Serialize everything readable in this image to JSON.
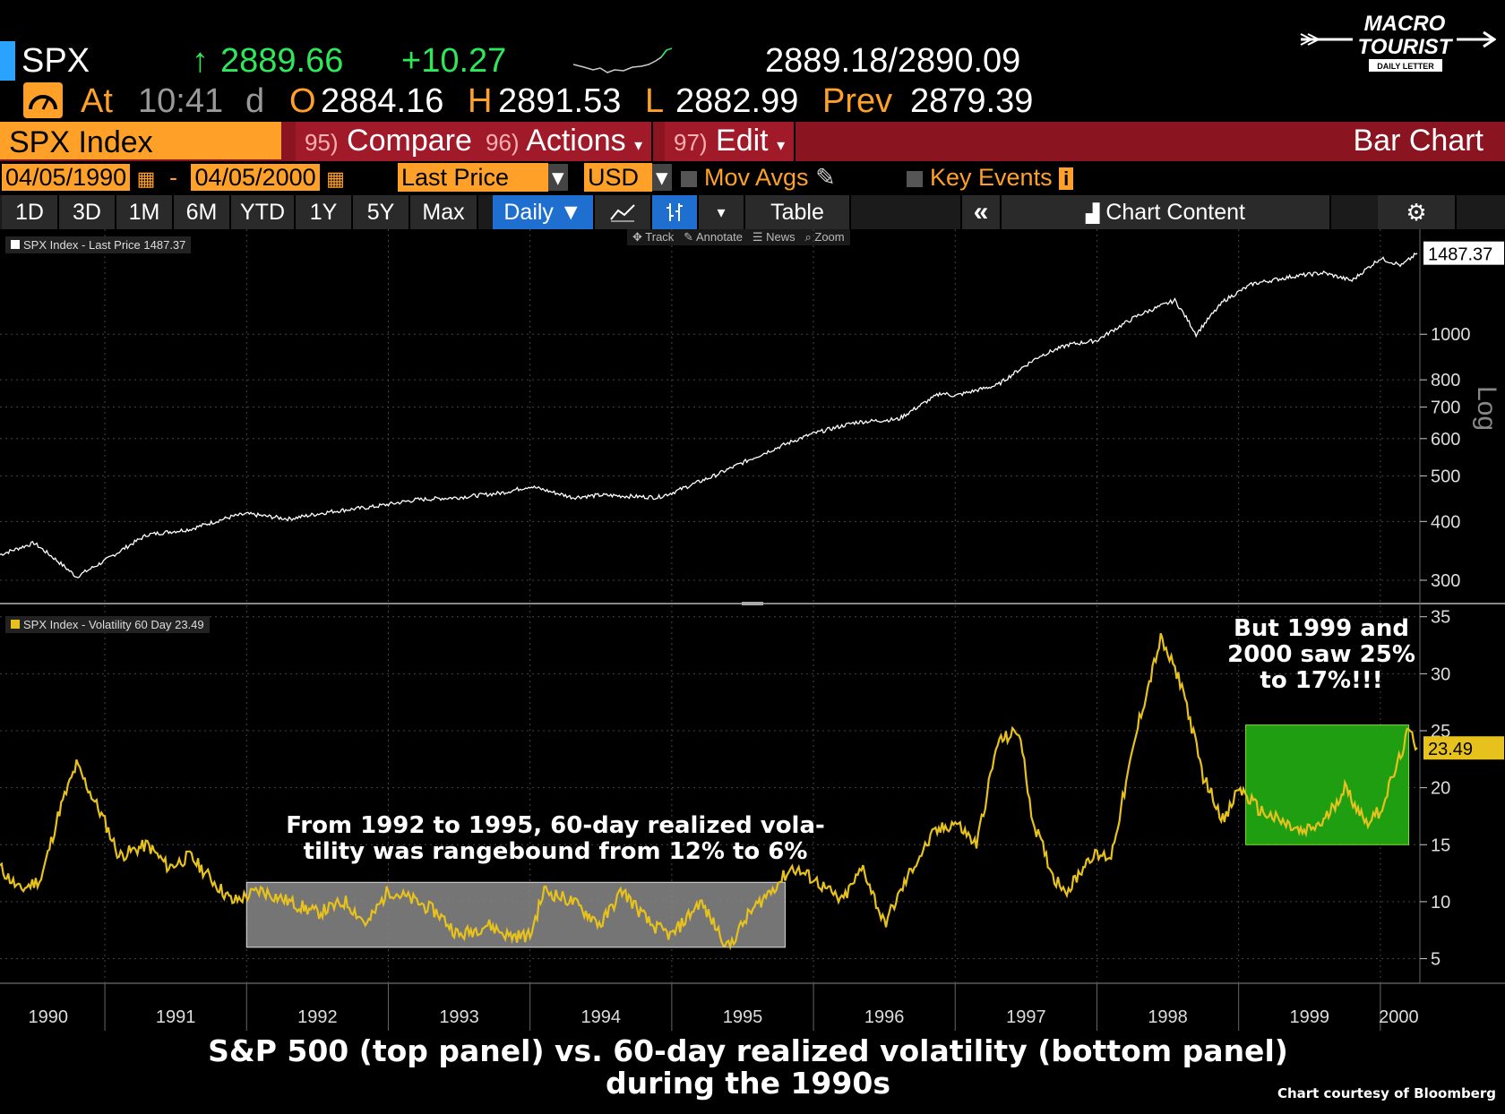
{
  "quote": {
    "ticker": "SPX",
    "arrow": "↑",
    "last": "2889.66",
    "change": "+10.27",
    "bid_ask": "2889.18/2890.09",
    "at_label": "At",
    "time": "10:41",
    "d_label": "d",
    "o_label": "O",
    "open": "2884.16",
    "h_label": "H",
    "high": "2891.53",
    "l_label": "L",
    "low": "2882.99",
    "prev_label": "Prev",
    "prev": "2879.39"
  },
  "logo": {
    "line1": "MACRO",
    "line2": "TOURIST",
    "line3": "DAILY LETTER"
  },
  "menu": {
    "security": "SPX Index",
    "compare_num": "95)",
    "compare": "Compare",
    "actions_num": "96)",
    "actions": "Actions",
    "edit_num": "97)",
    "edit": "Edit",
    "chart_type": "Bar Chart"
  },
  "controls": {
    "start_date": "04/05/1990",
    "dash": "-",
    "end_date": "04/05/2000",
    "field": "Last Price",
    "currency": "USD",
    "mov_avgs": "Mov Avgs",
    "key_events": "Key Events"
  },
  "tabs": [
    "1D",
    "3D",
    "1M",
    "6M",
    "YTD",
    "1Y",
    "5Y",
    "Max"
  ],
  "period": "Daily ▼",
  "table_label": "Table",
  "chart_content": "Chart Content",
  "tools": [
    "Track",
    "Annotate",
    "News",
    "Zoom"
  ],
  "colors": {
    "amber": "#ffa028",
    "price_line": "#ffffff",
    "vol_line": "#e8c21c",
    "green_box": "#1f9e12",
    "grey_box": "#8a8a8a"
  },
  "chart_data": [
    {
      "type": "line",
      "title": "SPX Index - Last Price 1487.37",
      "legend": "SPX Index - Last Price 1487.37",
      "last_value_label": "1487.37",
      "last_value": 1487.37,
      "scale": "log",
      "scale_label": "Log",
      "ylim": [
        270,
        1600
      ],
      "y_ticks": [
        300,
        400,
        500,
        600,
        700,
        800,
        1000
      ],
      "y_tick_labels": [
        "300",
        "400",
        "500",
        "600",
        "700",
        "800",
        "1000"
      ],
      "x": [
        1990.26,
        1990.5,
        1990.8,
        1991.0,
        1991.3,
        1991.6,
        1991.9,
        1992.0,
        1992.3,
        1992.6,
        1992.9,
        1993.2,
        1993.5,
        1993.8,
        1994.0,
        1994.3,
        1994.5,
        1994.9,
        1995.0,
        1995.3,
        1995.6,
        1995.9,
        1996.0,
        1996.3,
        1996.6,
        1996.9,
        1997.0,
        1997.3,
        1997.6,
        1997.8,
        1998.0,
        1998.3,
        1998.55,
        1998.7,
        1998.9,
        1999.1,
        1999.4,
        1999.6,
        1999.8,
        2000.0,
        2000.15,
        2000.26
      ],
      "values": [
        340,
        360,
        305,
        330,
        375,
        385,
        410,
        415,
        405,
        420,
        430,
        445,
        450,
        460,
        475,
        450,
        455,
        450,
        460,
        500,
        550,
        600,
        615,
        650,
        660,
        750,
        740,
        780,
        900,
        950,
        970,
        1100,
        1180,
        1000,
        1180,
        1280,
        1330,
        1350,
        1300,
        1450,
        1400,
        1487.37
      ]
    },
    {
      "type": "line",
      "title": "SPX Index - Volatility 60 Day 23.49",
      "legend": "SPX Index - Volatility 60 Day 23.49",
      "last_value_label": "23.49",
      "last_value": 23.49,
      "ylim": [
        3,
        36
      ],
      "y_ticks": [
        5,
        10,
        15,
        20,
        25,
        30,
        35
      ],
      "y_tick_labels": [
        "5",
        "10",
        "15",
        "20",
        "25",
        "30",
        "35"
      ],
      "x_categories": [
        "1990",
        "1991",
        "1992",
        "1993",
        "1994",
        "1995",
        "1996",
        "1997",
        "1998",
        "1999",
        "2000"
      ],
      "x": [
        1990.26,
        1990.4,
        1990.55,
        1990.68,
        1990.8,
        1991.0,
        1991.1,
        1991.3,
        1991.45,
        1991.6,
        1991.75,
        1991.9,
        1992.1,
        1992.3,
        1992.5,
        1992.7,
        1992.85,
        1993.0,
        1993.2,
        1993.35,
        1993.5,
        1993.7,
        1993.85,
        1994.0,
        1994.1,
        1994.3,
        1994.5,
        1994.65,
        1994.85,
        1995.0,
        1995.2,
        1995.4,
        1995.55,
        1995.7,
        1995.85,
        1996.0,
        1996.2,
        1996.35,
        1996.5,
        1996.7,
        1996.85,
        1997.0,
        1997.15,
        1997.3,
        1997.45,
        1997.55,
        1997.7,
        1997.8,
        1997.95,
        1998.1,
        1998.3,
        1998.45,
        1998.6,
        1998.75,
        1998.9,
        1999.0,
        1999.15,
        1999.3,
        1999.45,
        1999.6,
        1999.75,
        1999.9,
        2000.0,
        2000.12,
        2000.2,
        2000.26
      ],
      "values": [
        13,
        11,
        12,
        18,
        22,
        17,
        14,
        15,
        13,
        14,
        12,
        10,
        11,
        10,
        9,
        10,
        8,
        11,
        10,
        9,
        7,
        8,
        7,
        7,
        11,
        10,
        8,
        11,
        8,
        7,
        10,
        6,
        9,
        11,
        13,
        12,
        10,
        13,
        8,
        13,
        16,
        17,
        15,
        24,
        25,
        17,
        12,
        11,
        14,
        14,
        26,
        33,
        29,
        21,
        17,
        20,
        18,
        17,
        16,
        17,
        20,
        17,
        18,
        22,
        25,
        23.49
      ]
    }
  ],
  "annotations": {
    "range_text": "From 1992 to 1995, 60-day realized vola- tility was rangebound from 12% to 6%",
    "range_line1": "From 1992 to 1995, 60-day realized vola-",
    "range_line2": "tility was rangebound from 12% to 6%",
    "late_line1": "But 1999 and",
    "late_line2": "2000 saw 25%",
    "late_line3": "to 17%!!!",
    "grey_box": {
      "x_from": 1992.0,
      "x_to": 1995.8,
      "y_from": 6,
      "y_to": 11.7
    },
    "green_box": {
      "x_from": 1999.05,
      "x_to": 2000.2,
      "y_from": 15,
      "y_to": 25.5
    }
  },
  "caption": {
    "line1": "S&P 500 (top panel) vs. 60-day realized volatility (bottom panel)",
    "line2": "during the 1990s"
  },
  "credit": "Chart courtesy of Bloomberg"
}
